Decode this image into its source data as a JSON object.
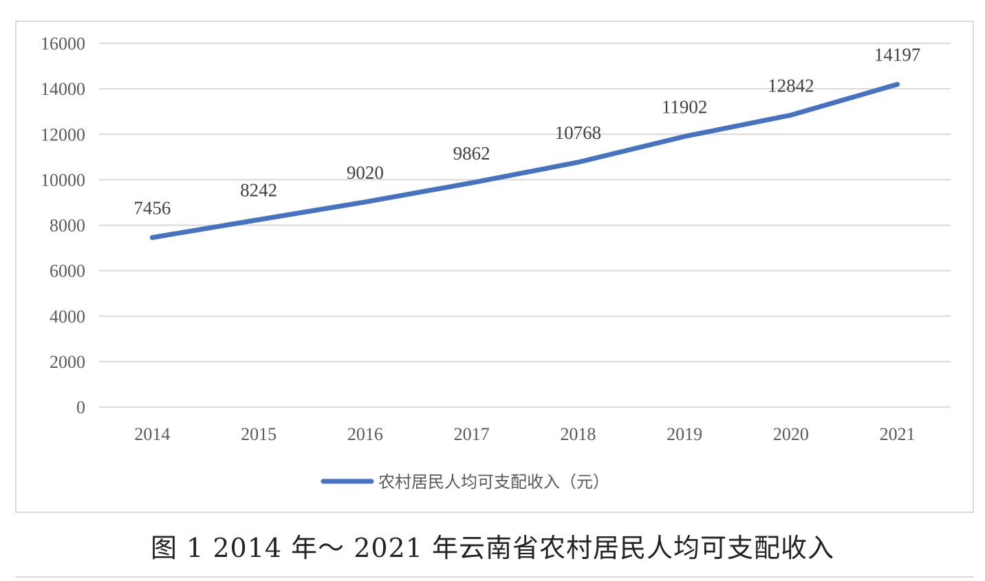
{
  "caption": "图 1  2014 年～ 2021 年云南省农村居民人均可支配收入",
  "colors": {
    "series": "#4472c4",
    "grid": "#d9d9d9",
    "frame": "#d9d9d9"
  },
  "chart_data": {
    "type": "line",
    "categories": [
      "2014",
      "2015",
      "2016",
      "2017",
      "2018",
      "2019",
      "2020",
      "2021"
    ],
    "series": [
      {
        "name": "农村居民人均可支配收入（元）",
        "values": [
          7456,
          8242,
          9020,
          9862,
          10768,
          11902,
          12842,
          14197
        ]
      }
    ],
    "ylim": [
      0,
      16000
    ],
    "yticks": [
      0,
      2000,
      4000,
      6000,
      8000,
      10000,
      12000,
      14000,
      16000
    ],
    "data_labels": true,
    "grid": true,
    "legend": "bottom",
    "title": "",
    "xlabel": "",
    "ylabel": ""
  }
}
